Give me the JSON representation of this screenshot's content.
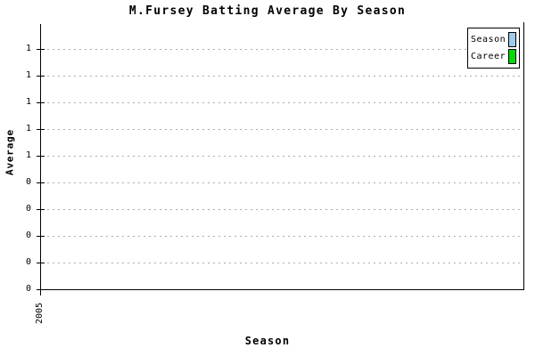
{
  "title": "M.Fursey Batting Average By Season",
  "axes": {
    "y_label": "Average",
    "x_label": "Season"
  },
  "legend": {
    "items": [
      {
        "label": "Season",
        "color": "#9FCBEC"
      },
      {
        "label": "Career",
        "color": "#00DC00"
      }
    ]
  },
  "chart_data": {
    "type": "bar",
    "title": "M.Fursey Batting Average By Season",
    "xlabel": "Season",
    "ylabel": "Average",
    "categories": [
      "2005"
    ],
    "series": [
      {
        "name": "Season",
        "color": "#9FCBEC",
        "values": [
          0
        ]
      },
      {
        "name": "Career",
        "color": "#00DC00",
        "values": [
          0
        ]
      }
    ],
    "x_tick_labels": [
      "2005"
    ],
    "y_ticks": [
      0.9,
      0.8,
      0.7,
      0.6,
      0.5,
      0.4,
      0.3,
      0.2,
      0.1,
      0.0
    ],
    "y_tick_labels": [
      "1",
      "1",
      "1",
      "1",
      "1",
      "0",
      "0",
      "0",
      "0",
      "0"
    ],
    "ylim": [
      0,
      1.0
    ],
    "grid": "horizontal-dashed",
    "gridline_color": "#ABABAB",
    "axis_color": "#000000",
    "legend_position": "top-right"
  }
}
